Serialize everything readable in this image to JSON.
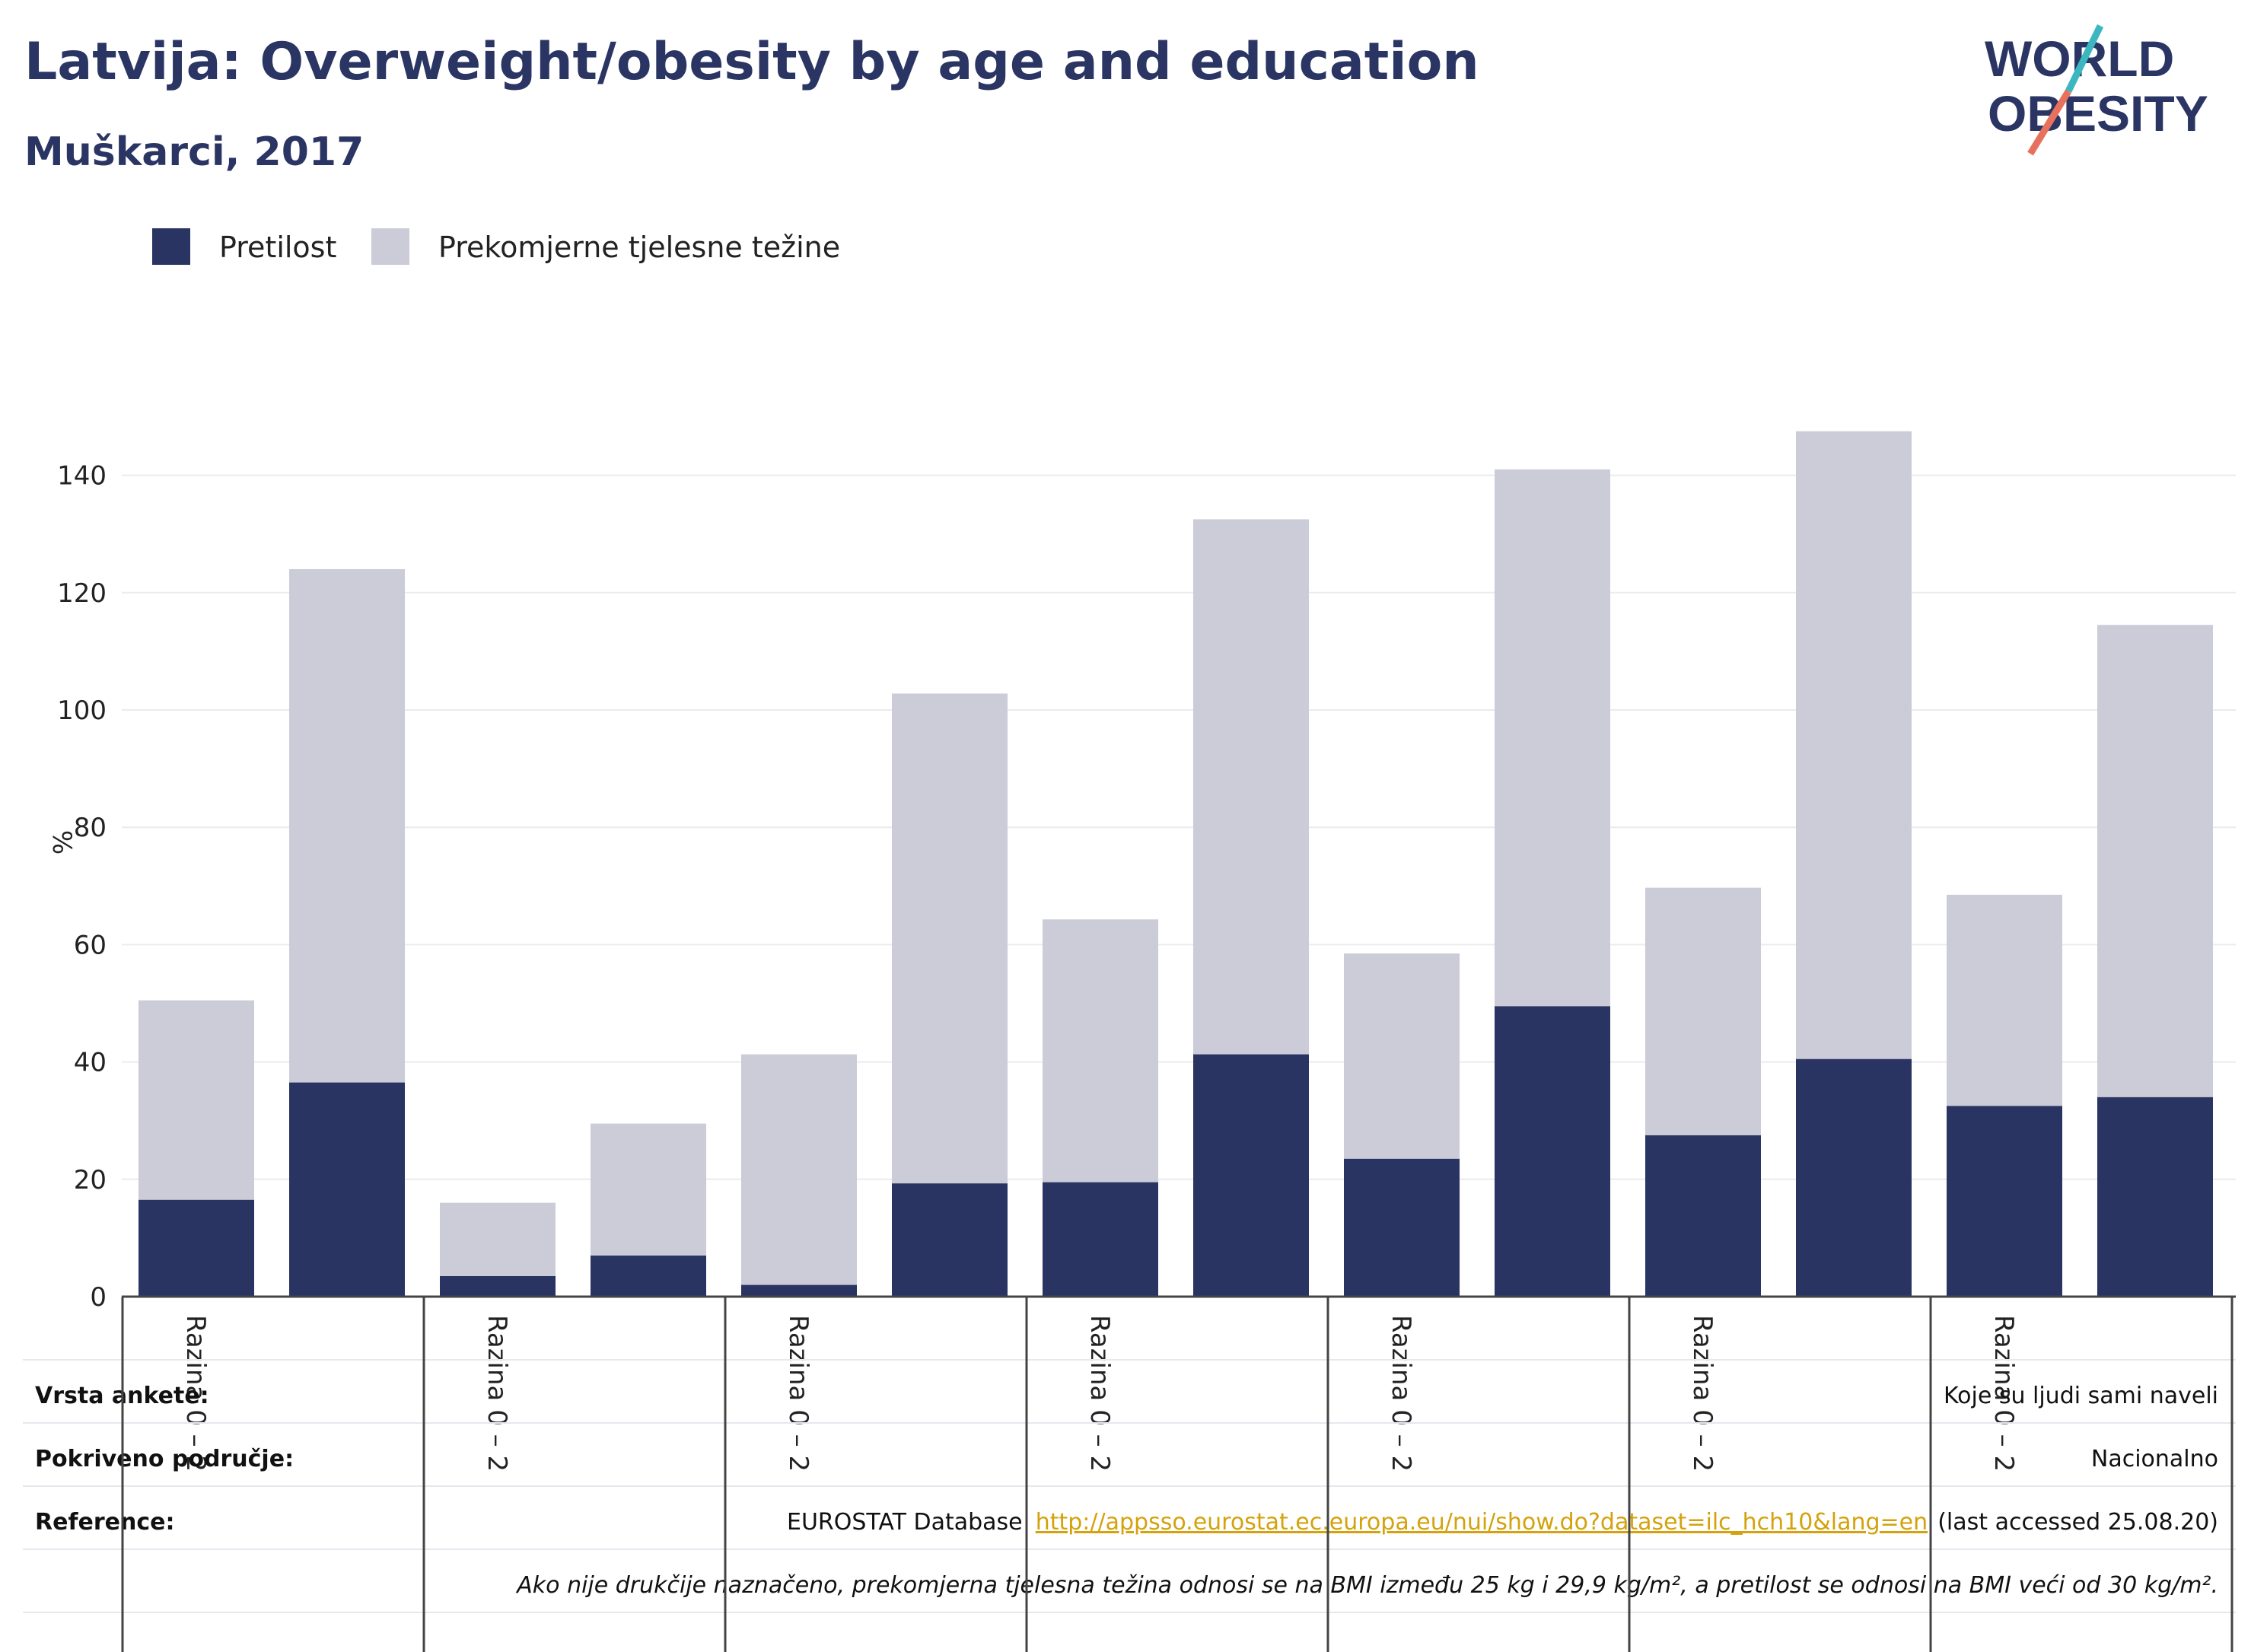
{
  "title": "Latvija: Overweight/obesity by age and education",
  "subtitle": "Muškarci, 2017",
  "logo": {
    "line1": "WORLD",
    "line2": "OBESITY"
  },
  "colors": {
    "obesity": "#293462",
    "overweight": "#cbccd8",
    "text": "#2a3563",
    "link": "#d4a20c"
  },
  "chart_data": {
    "type": "bar",
    "stacked": true,
    "ylabel": "%",
    "ylim": [
      0,
      150
    ],
    "yticks": [
      0,
      20,
      40,
      60,
      80,
      100,
      120,
      140
    ],
    "grid": true,
    "legend_position": "top-left",
    "categories": [
      "Razina 0 – 2",
      "",
      "Razina 0 – 2",
      "",
      "Razina 0 – 2",
      "",
      "Razina 0 – 2",
      "",
      "Razina 0 – 2",
      "",
      "Razina 0 – 2",
      "",
      "Razina 0 – 2",
      ""
    ],
    "series": [
      {
        "name": "Pretilost",
        "values": [
          16.5,
          36.5,
          3.5,
          7.0,
          2.0,
          19.3,
          19.5,
          41.3,
          23.5,
          49.5,
          27.5,
          40.5,
          32.5,
          34.0
        ]
      },
      {
        "name": "Prekomjerne tjelesne težine",
        "values": [
          34.0,
          87.5,
          12.5,
          22.5,
          39.3,
          83.5,
          44.8,
          91.2,
          35.0,
          91.5,
          42.2,
          107.0,
          36.0,
          80.5
        ]
      }
    ]
  },
  "info": {
    "survey_label": "Vrsta ankete:",
    "survey_value": "Koje su ljudi sami naveli",
    "coverage_label": "Pokriveno područje:",
    "coverage_value": "Nacionalno",
    "reference_label": "Reference:",
    "reference_prefix": "EUROSTAT Database",
    "reference_link": "http://appsso.eurostat.ec.europa.eu/nui/show.do?dataset=ilc_hch10&lang=en",
    "reference_suffix": "(last accessed 25.08.20)",
    "note": "Ako nije drukčije naznačeno, prekomjerna tjelesna težina odnosi se na BMI između 25 kg i 29,9 kg/m², a pretilost se odnosi na BMI veći od 30 kg/m²."
  }
}
